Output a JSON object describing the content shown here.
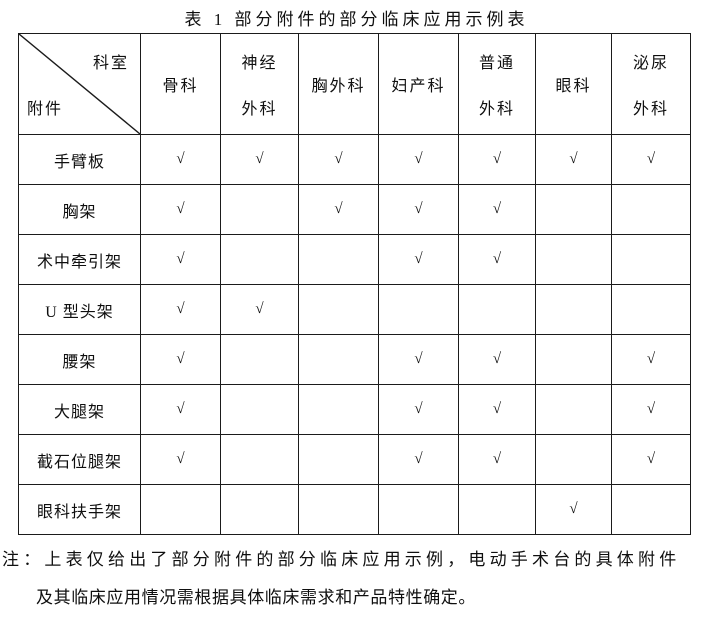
{
  "title": "表 1 部分附件的部分临床应用示例表",
  "table": {
    "corner": {
      "top_right": "科室",
      "bottom_left": "附件"
    },
    "check_mark": "√",
    "columns": [
      {
        "label_lines": [
          "骨科"
        ]
      },
      {
        "label_lines": [
          "神经",
          "外科"
        ]
      },
      {
        "label_lines": [
          "胸外科"
        ]
      },
      {
        "label_lines": [
          "妇产科"
        ]
      },
      {
        "label_lines": [
          "普通",
          "外科"
        ]
      },
      {
        "label_lines": [
          "眼科"
        ]
      },
      {
        "label_lines": [
          "泌尿",
          "外科"
        ]
      }
    ],
    "rows": [
      {
        "label": "手臂板",
        "checks": [
          1,
          1,
          1,
          1,
          1,
          1,
          1
        ]
      },
      {
        "label": "胸架",
        "checks": [
          1,
          0,
          1,
          1,
          1,
          0,
          0
        ]
      },
      {
        "label": "术中牵引架",
        "checks": [
          1,
          0,
          0,
          1,
          1,
          0,
          0
        ]
      },
      {
        "label": "U 型头架",
        "checks": [
          1,
          1,
          0,
          0,
          0,
          0,
          0
        ]
      },
      {
        "label": "腰架",
        "checks": [
          1,
          0,
          0,
          1,
          1,
          0,
          1
        ]
      },
      {
        "label": "大腿架",
        "checks": [
          1,
          0,
          0,
          1,
          1,
          0,
          1
        ]
      },
      {
        "label": "截石位腿架",
        "checks": [
          1,
          0,
          0,
          1,
          1,
          0,
          1
        ]
      },
      {
        "label": "眼科扶手架",
        "checks": [
          0,
          0,
          0,
          0,
          0,
          1,
          0
        ]
      }
    ]
  },
  "note": {
    "prefix": "注：",
    "line1": "上表仅给出了部分附件的部分临床应用示例，电动手术台的具体附件",
    "line2": "及其临床应用情况需根据具体临床需求和产品特性确定。"
  },
  "colors": {
    "text": "#0f0f0f",
    "border": "#1b1b1b",
    "background": "#ffffff"
  }
}
